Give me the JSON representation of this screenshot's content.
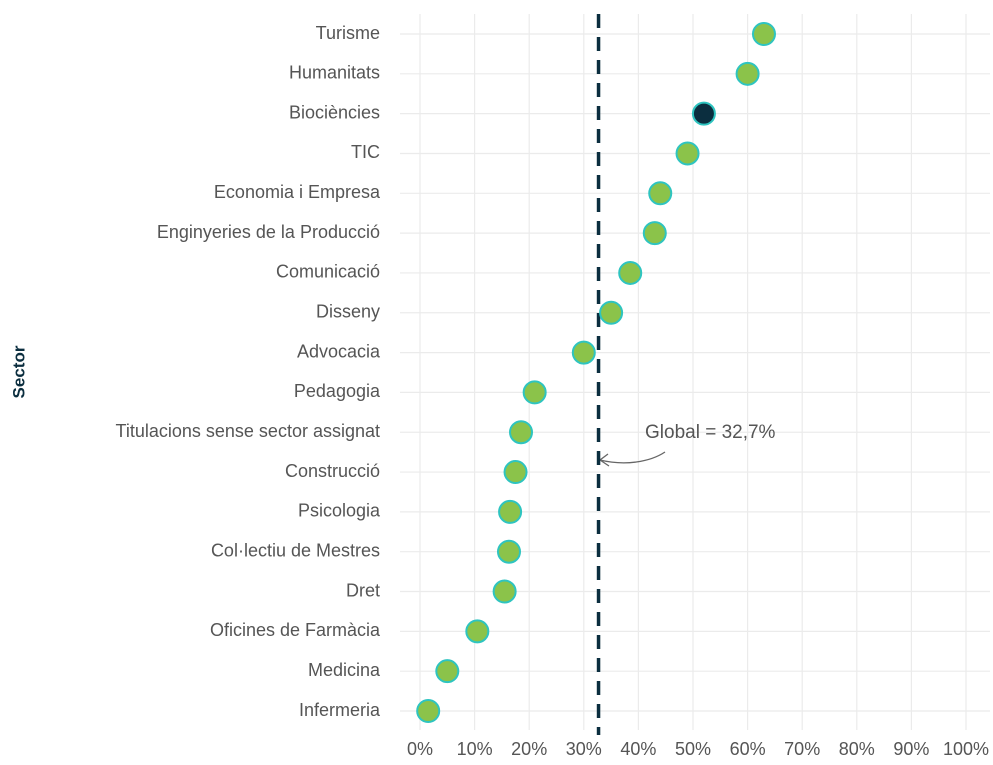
{
  "chart_data": {
    "type": "dot",
    "y_label": "Sector",
    "categories": [
      "Turisme",
      "Humanitats",
      "Biociències",
      "TIC",
      "Economia i Empresa",
      "Enginyeries de la Producció",
      "Comunicació",
      "Disseny",
      "Advocacia",
      "Pedagogia",
      "Titulacions sense sector assignat",
      "Construcció",
      "Psicologia",
      "Col·lectiu de Mestres",
      "Dret",
      "Oficines de Farmàcia",
      "Medicina",
      "Infermeria"
    ],
    "values": [
      63,
      60,
      52,
      49,
      44,
      43,
      38.5,
      35,
      30,
      21,
      18.5,
      17.5,
      16.5,
      16.3,
      15.5,
      10.5,
      5,
      1.5
    ],
    "colors": [
      "#8bc34a",
      "#8bc34a",
      "#0b2e3f",
      "#8bc34a",
      "#8bc34a",
      "#8bc34a",
      "#8bc34a",
      "#8bc34a",
      "#8bc34a",
      "#8bc34a",
      "#8bc34a",
      "#8bc34a",
      "#8bc34a",
      "#8bc34a",
      "#8bc34a",
      "#8bc34a",
      "#8bc34a",
      "#8bc34a"
    ],
    "outline_color": "#2ec4c0",
    "reference": {
      "value": 32.7,
      "label": "Global = 32,7%",
      "color": "#0b2e3f"
    },
    "xlim": [
      0,
      100
    ],
    "xticks": [
      {
        "value": 0,
        "label": "0%"
      },
      {
        "value": 10,
        "label": "10%"
      },
      {
        "value": 20,
        "label": "20%"
      },
      {
        "value": 30,
        "label": "30%"
      },
      {
        "value": 40,
        "label": "40%"
      },
      {
        "value": 50,
        "label": "50%"
      },
      {
        "value": 60,
        "label": "60%"
      },
      {
        "value": 70,
        "label": "70%"
      },
      {
        "value": 80,
        "label": "80%"
      },
      {
        "value": 90,
        "label": "90%"
      },
      {
        "value": 100,
        "label": "100%"
      }
    ],
    "grid": true
  }
}
